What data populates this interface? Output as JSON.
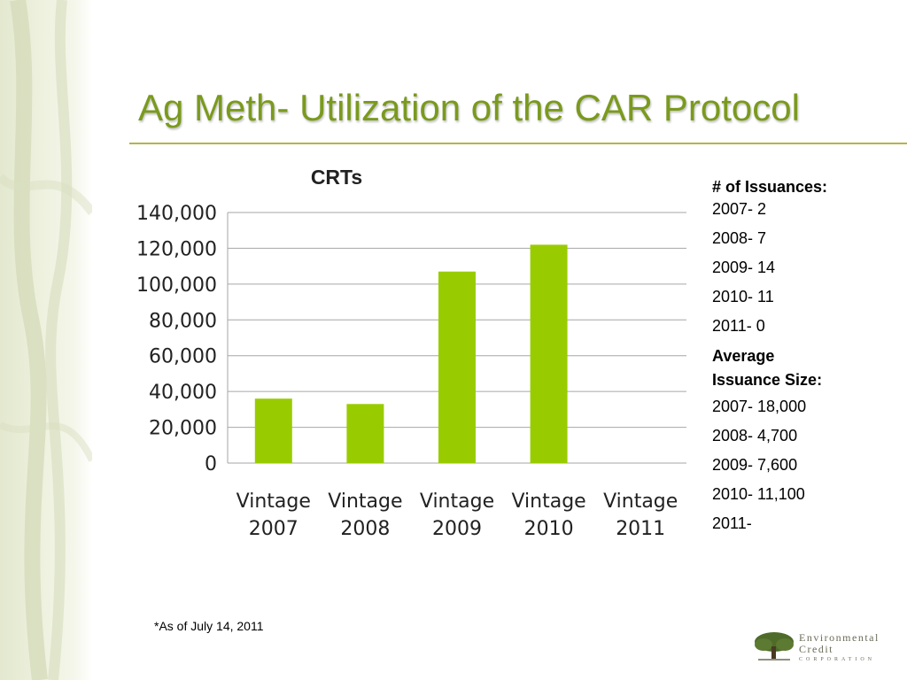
{
  "slide": {
    "title": "Ag Meth- Utilization of the CAR Protocol",
    "footnote": "*As of July 14, 2011"
  },
  "chart_data": {
    "type": "bar",
    "title": "CRTs",
    "categories": [
      "Vintage 2007",
      "Vintage 2008",
      "Vintage 2009",
      "Vintage 2010",
      "Vintage 2011"
    ],
    "values": [
      36000,
      33000,
      107000,
      122000,
      0
    ],
    "ylim": [
      0,
      140000
    ],
    "yticks": [
      "0",
      "20,000",
      "40,000",
      "60,000",
      "80,000",
      "100,000",
      "120,000",
      "140,000"
    ],
    "grid": true,
    "bar_color": "#99cc00"
  },
  "side_panel": {
    "issuances_heading": "# of Issuances:",
    "issuances": [
      "2007- 2",
      "2008- 7",
      "2009- 14",
      "2010- 11",
      "2011- 0"
    ],
    "avg_heading_1": "Average",
    "avg_heading_2": "Issuance Size:",
    "avg_sizes": [
      "2007- 18,000",
      "2008- 4,700",
      "2009- 7,600",
      "2010- 11,100",
      "2011-"
    ]
  },
  "logo": {
    "line1": "Environmental",
    "line2": "Credit",
    "line3": "CORPORATION",
    "icon": "oak-tree-icon"
  }
}
